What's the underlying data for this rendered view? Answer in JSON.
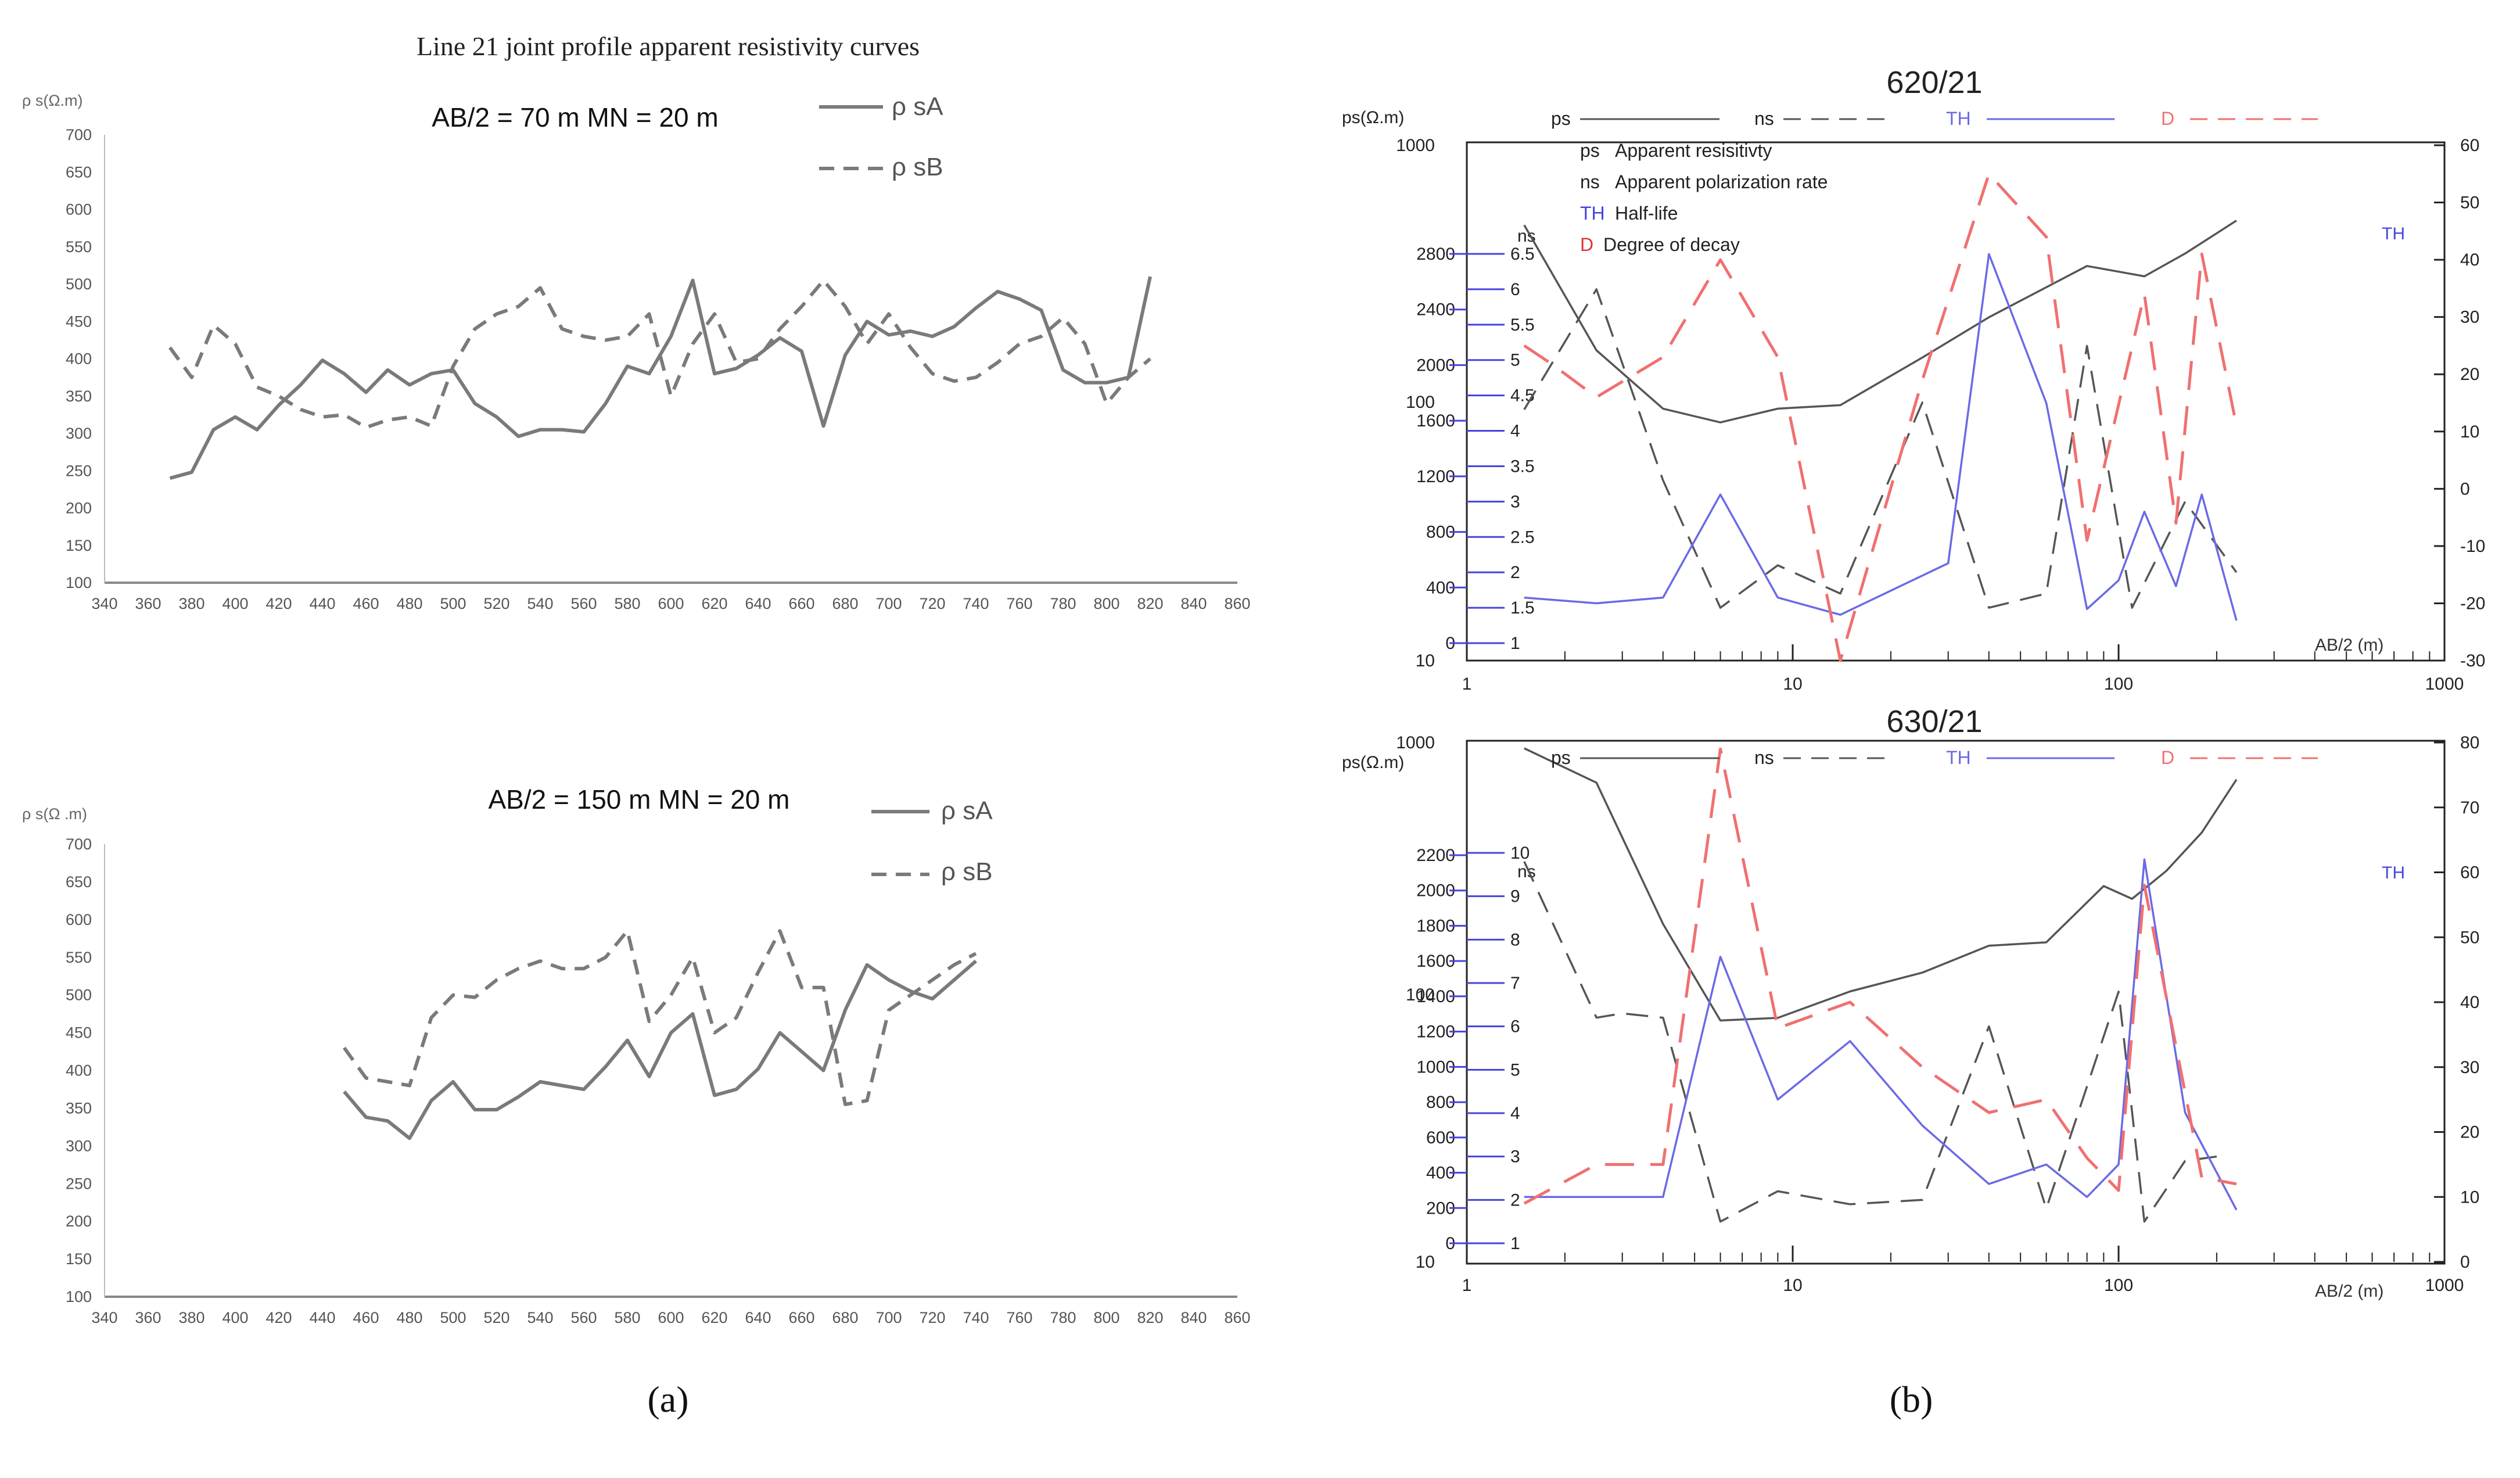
{
  "chart_data": [
    {
      "type": "line",
      "panel": "a",
      "title": "Line 21 joint profile apparent resistivity curves",
      "subtitle": "AB/2 = 70 m   MN = 20 m",
      "ylabel": "ρ s(Ω.m)",
      "xlabel": "",
      "xlim": [
        340,
        860
      ],
      "ylim": [
        100,
        700
      ],
      "xticks": [
        "340",
        "360",
        "380",
        "400",
        "420",
        "440",
        "460",
        "480",
        "500",
        "520",
        "540",
        "560",
        "580",
        "600",
        "620",
        "640",
        "660",
        "680",
        "700",
        "720",
        "740",
        "760",
        "780",
        "800",
        "820",
        "840",
        "860"
      ],
      "yticks": [
        "100",
        "150",
        "200",
        "250",
        "300",
        "350",
        "400",
        "450",
        "500",
        "550",
        "600",
        "650",
        "700"
      ],
      "legend": [
        "ρ  sA",
        "ρ  sB"
      ],
      "series": [
        {
          "name": "ρ  sA",
          "style": "solid",
          "x": [
            370,
            380,
            390,
            400,
            410,
            420,
            430,
            440,
            450,
            460,
            470,
            480,
            490,
            500,
            510,
            520,
            530,
            540,
            550,
            560,
            570,
            580,
            590,
            600,
            610,
            620,
            630,
            640,
            650,
            660,
            670,
            680,
            690,
            700,
            710,
            720,
            730,
            740,
            750,
            760,
            770,
            780,
            790,
            800,
            810,
            820
          ],
          "y": [
            240,
            248,
            305,
            322,
            305,
            338,
            365,
            398,
            380,
            355,
            385,
            365,
            380,
            385,
            340,
            322,
            296,
            305,
            305,
            302,
            340,
            390,
            380,
            430,
            505,
            380,
            387,
            405,
            428,
            410,
            310,
            405,
            450,
            432,
            437,
            430,
            443,
            468,
            490,
            480,
            465,
            385,
            368,
            368,
            375,
            510
          ]
        },
        {
          "name": "ρ  sB",
          "style": "dashed",
          "x": [
            370,
            380,
            390,
            400,
            410,
            420,
            430,
            440,
            450,
            460,
            470,
            480,
            490,
            500,
            510,
            520,
            530,
            540,
            550,
            560,
            570,
            580,
            590,
            600,
            610,
            620,
            630,
            640,
            650,
            660,
            670,
            680,
            690,
            700,
            710,
            720,
            730,
            740,
            750,
            760,
            770,
            780,
            790,
            800,
            810,
            820
          ],
          "y": [
            415,
            375,
            445,
            420,
            362,
            350,
            332,
            322,
            325,
            308,
            318,
            322,
            310,
            390,
            440,
            460,
            470,
            495,
            440,
            430,
            425,
            430,
            460,
            350,
            420,
            460,
            395,
            400,
            440,
            470,
            505,
            470,
            420,
            460,
            415,
            380,
            370,
            375,
            395,
            420,
            430,
            455,
            420,
            340,
            375,
            400
          ]
        }
      ]
    },
    {
      "type": "line",
      "panel": "a",
      "subtitle": "AB/2 = 150 m   MN = 20 m",
      "ylabel": "ρ  s(Ω .m)",
      "xlabel": "",
      "xlim": [
        340,
        860
      ],
      "ylim": [
        100,
        700
      ],
      "xticks": [
        "340",
        "360",
        "380",
        "400",
        "420",
        "440",
        "460",
        "480",
        "500",
        "520",
        "540",
        "560",
        "580",
        "600",
        "620",
        "640",
        "660",
        "680",
        "700",
        "720",
        "740",
        "760",
        "780",
        "800",
        "820",
        "840",
        "860"
      ],
      "yticks": [
        "100",
        "150",
        "200",
        "250",
        "300",
        "350",
        "400",
        "450",
        "500",
        "550",
        "600",
        "650",
        "700"
      ],
      "legend": [
        "ρ  sA",
        "ρ  sB"
      ],
      "series": [
        {
          "name": "ρ  sA",
          "style": "solid",
          "x": [
            450,
            460,
            470,
            480,
            490,
            500,
            510,
            520,
            530,
            540,
            550,
            560,
            570,
            580,
            590,
            600,
            610,
            620,
            630,
            640,
            650,
            660,
            670,
            680,
            690,
            700,
            710,
            720,
            730,
            740
          ],
          "y": [
            372,
            338,
            333,
            310,
            360,
            385,
            348,
            348,
            365,
            385,
            380,
            375,
            405,
            440,
            392,
            450,
            475,
            367,
            375,
            402,
            450,
            425,
            400,
            480,
            540,
            520,
            505,
            495,
            520,
            545
          ]
        },
        {
          "name": "ρ  sB",
          "style": "dashed",
          "x": [
            450,
            460,
            470,
            480,
            490,
            500,
            510,
            520,
            530,
            540,
            550,
            560,
            570,
            580,
            590,
            600,
            610,
            620,
            630,
            640,
            650,
            660,
            670,
            680,
            690,
            700,
            710,
            720,
            730,
            740
          ],
          "y": [
            430,
            390,
            385,
            380,
            470,
            500,
            497,
            520,
            535,
            545,
            535,
            535,
            550,
            585,
            465,
            500,
            550,
            450,
            470,
            530,
            585,
            510,
            510,
            355,
            360,
            480,
            500,
            520,
            540,
            555
          ]
        }
      ]
    },
    {
      "type": "line",
      "panel": "b",
      "title": "620/21",
      "xscale": "log",
      "xlabel": "AB/2 (m)",
      "xticks": [
        "1",
        "10",
        "100",
        "1000"
      ],
      "legend": [
        "ps",
        "ns",
        "TH",
        "D"
      ],
      "annotations": [
        "ps Apparent resisitivty",
        "ns Apparent polarization rate",
        "TH Half-life",
        "D Degree of decay"
      ],
      "axes": {
        "left_outer": {
          "label": "ps(Ω.m)",
          "ticks": [
            "1000",
            "100",
            "10"
          ]
        },
        "left_mid": {
          "ticks": [
            "2800",
            "2400",
            "2000",
            "1600",
            "1200",
            "800",
            "400",
            "0"
          ]
        },
        "left_inner": {
          "label": "ns",
          "ticks": [
            "6.5",
            "6",
            "5.5",
            "5",
            "4.5",
            "4",
            "3.5",
            "3",
            "2.5",
            "2",
            "1.5",
            "1"
          ]
        },
        "right": {
          "label": "TH",
          "ticks": [
            "60",
            "50",
            "40",
            "30",
            "20",
            "10",
            "0",
            "-10",
            "-20",
            "-30"
          ],
          "range": [
            -30,
            60
          ]
        }
      },
      "series": [
        {
          "name": "ps",
          "axis": "log 10-1000",
          "color": "#555555",
          "x": [
            1.5,
            2.5,
            4,
            6,
            9,
            14,
            25,
            40,
            80,
            120,
            160,
            230
          ],
          "y": [
            490,
            160,
            95,
            84,
            95,
            98,
            150,
            215,
            340,
            310,
            380,
            510
          ]
        },
        {
          "name": "ns",
          "axis": "1-6.5",
          "color": "#555555",
          "x": [
            1.5,
            2.5,
            4,
            6,
            9,
            14,
            25,
            40,
            60,
            80,
            110,
            160,
            230
          ],
          "y": [
            4.3,
            6,
            3.3,
            1.5,
            2.1,
            1.7,
            4.4,
            1.5,
            1.7,
            5.2,
            1.5,
            3,
            2
          ]
        },
        {
          "name": "TH",
          "axis": "right -30..60",
          "color": "#6a6ae6",
          "x": [
            1.5,
            2.5,
            4,
            6,
            9,
            14,
            30,
            40,
            60,
            80,
            100,
            120,
            150,
            180,
            230
          ],
          "y": [
            -19,
            -20,
            -19,
            -1,
            -19,
            -22,
            -13,
            41,
            15,
            -21,
            -16,
            -4,
            -17,
            -1,
            -23
          ]
        },
        {
          "name": "D",
          "axis": "right -30..60",
          "color": "#f07070",
          "x": [
            1.5,
            1.8,
            2.5,
            4,
            6,
            9,
            14,
            25,
            40,
            60,
            80,
            120,
            150,
            180,
            230
          ],
          "y": [
            25,
            22,
            16,
            23,
            40,
            23,
            -30,
            19,
            55,
            44,
            -9,
            34,
            -6,
            41,
            11
          ]
        }
      ]
    },
    {
      "type": "line",
      "panel": "b",
      "title": "630/21",
      "xscale": "log",
      "xlabel": "AB/2 (m)",
      "xticks": [
        "1",
        "10",
        "100",
        "1000"
      ],
      "legend": [
        "ps",
        "ns",
        "TH",
        "D"
      ],
      "axes": {
        "left_outer": {
          "label": "ps(Ω.m)",
          "ticks": [
            "1000",
            "100",
            "10"
          ]
        },
        "left_mid": {
          "ticks": [
            "2200",
            "2000",
            "1800",
            "1600",
            "1400",
            "1200",
            "1000",
            "800",
            "600",
            "400",
            "200",
            "0"
          ]
        },
        "left_inner": {
          "label": "ns",
          "ticks": [
            "10",
            "9",
            "8",
            "7",
            "6",
            "5",
            "4",
            "3",
            "2",
            "1"
          ]
        },
        "right": {
          "label": "TH",
          "ticks": [
            "80",
            "70",
            "60",
            "50",
            "40",
            "30",
            "20",
            "10",
            "0"
          ],
          "range": [
            0,
            80
          ]
        }
      },
      "series": [
        {
          "name": "ps",
          "axis": "log 10-1000",
          "color": "#555555",
          "x": [
            1.5,
            2.5,
            4,
            6,
            9,
            15,
            25,
            40,
            60,
            90,
            110,
            140,
            180,
            230
          ],
          "y": [
            950,
            700,
            200,
            85,
            87,
            110,
            130,
            165,
            170,
            280,
            250,
            320,
            450,
            720
          ]
        },
        {
          "name": "ns",
          "axis": "1-10",
          "color": "#555555",
          "x": [
            1.5,
            2.5,
            3,
            4,
            6,
            9,
            15,
            25,
            40,
            60,
            100,
            120,
            160,
            200
          ],
          "y": [
            9.8,
            6.2,
            6.3,
            6.2,
            1.5,
            2.2,
            1.9,
            2,
            6,
            1.8,
            6.8,
            1.5,
            2.9,
            3
          ]
        },
        {
          "name": "TH",
          "axis": "right 0..80",
          "color": "#6a6ae6",
          "x": [
            1.5,
            2.5,
            4,
            6,
            9,
            15,
            25,
            40,
            60,
            80,
            100,
            120,
            160,
            230
          ],
          "y": [
            10,
            10,
            10,
            47,
            25,
            34,
            21,
            12,
            15,
            10,
            15,
            62,
            23,
            8
          ]
        },
        {
          "name": "D",
          "axis": "right 0..80",
          "color": "#f07070",
          "x": [
            1.5,
            2.5,
            4,
            6,
            9,
            15,
            25,
            40,
            60,
            80,
            100,
            120,
            180,
            230
          ],
          "y": [
            9,
            15,
            15,
            79,
            36,
            40,
            30,
            23,
            25,
            16,
            11,
            58,
            13,
            12
          ]
        }
      ]
    }
  ],
  "panel_labels": {
    "a": "(a)",
    "b": "(b)"
  },
  "colors": {
    "gray_line": "#7a7a7a",
    "dark_line": "#555555",
    "blue": "#6a6ae6",
    "red": "#f07070",
    "axis": "#444444"
  }
}
